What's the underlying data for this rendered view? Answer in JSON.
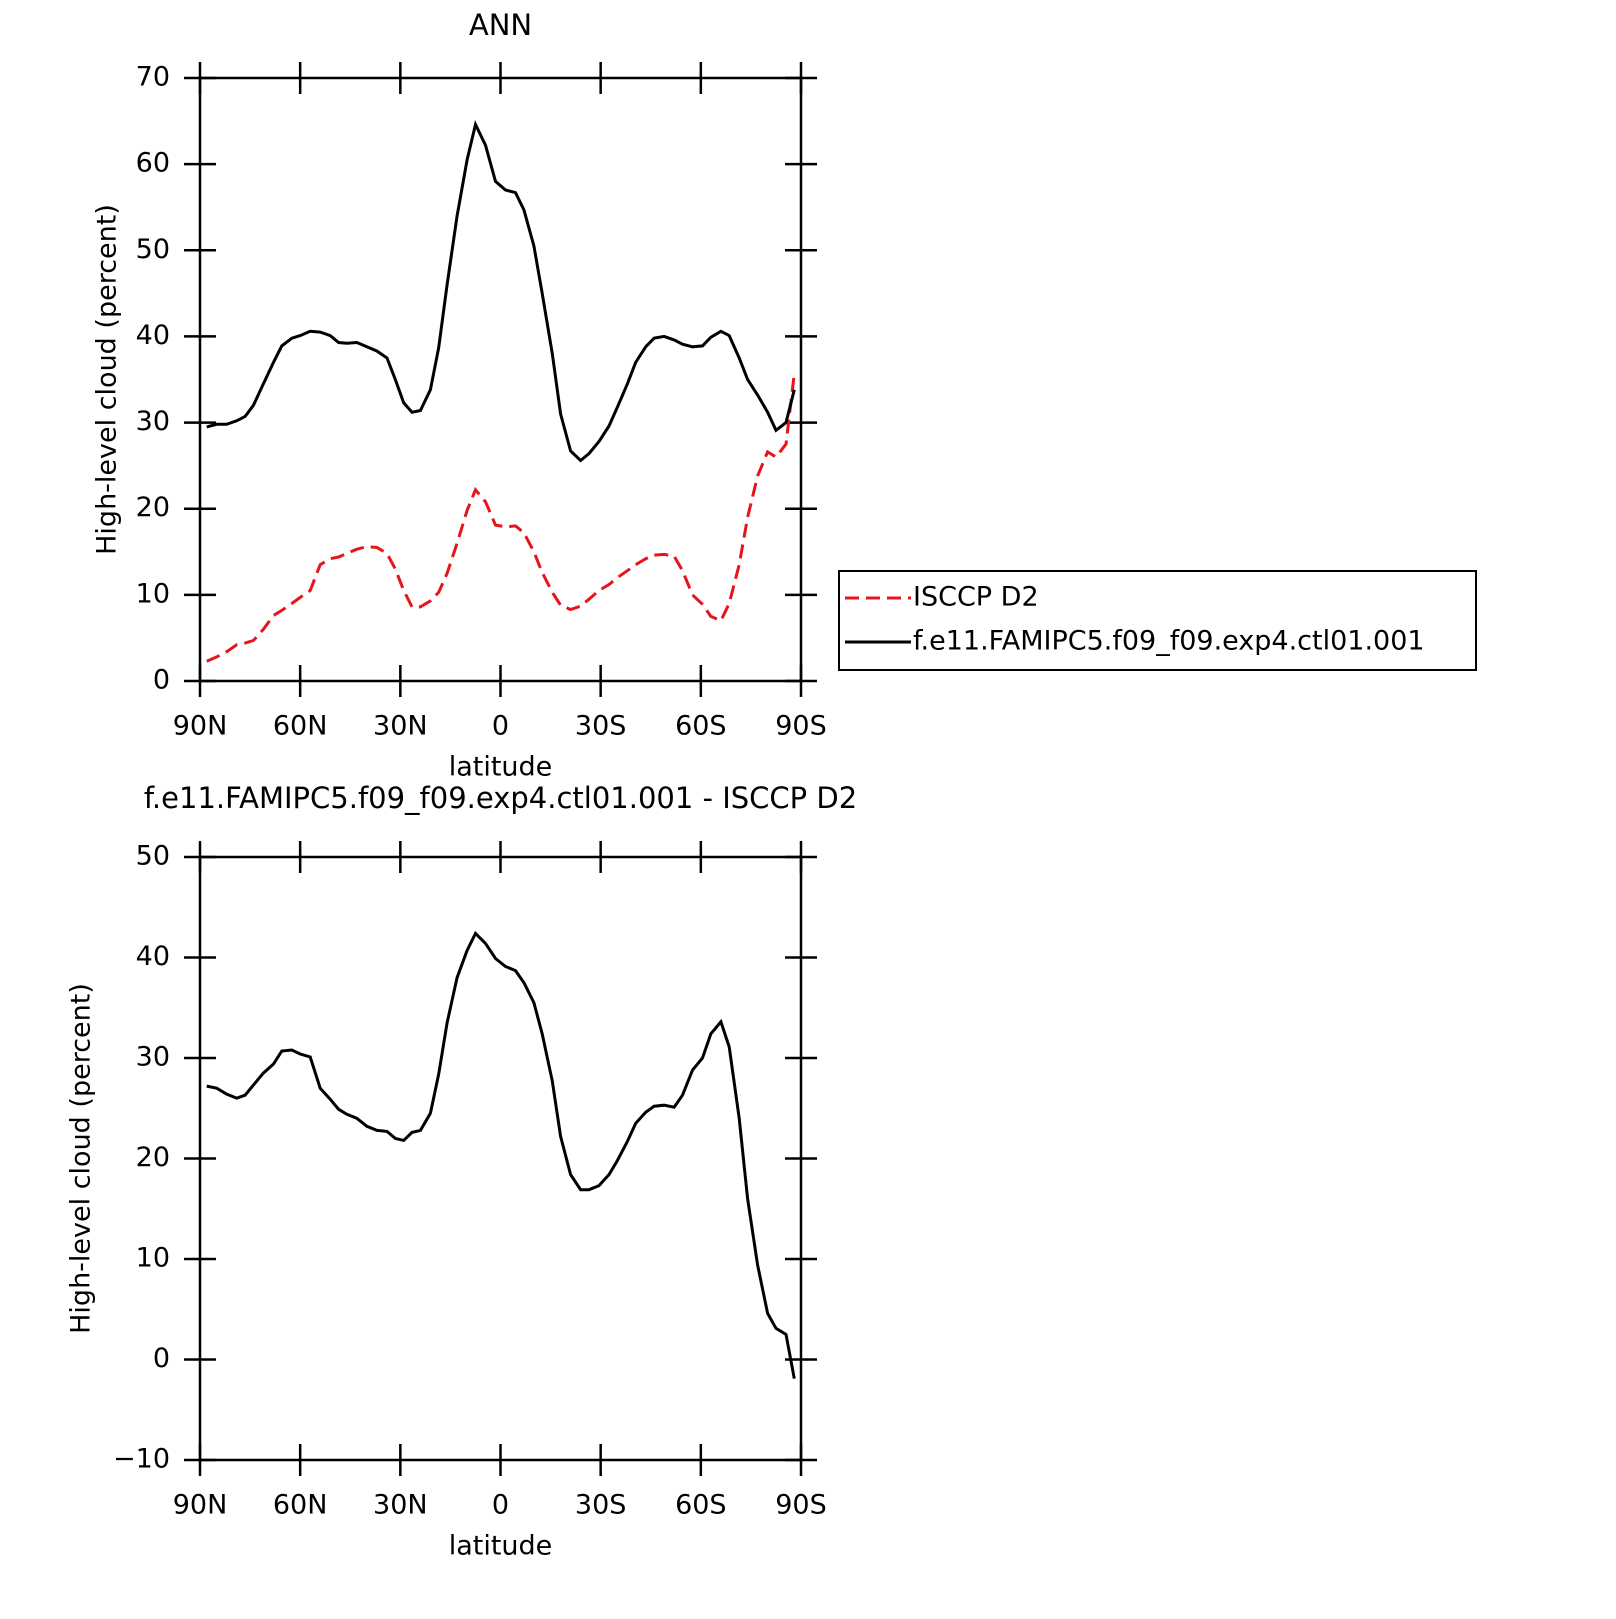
{
  "chart_data": [
    {
      "type": "line",
      "title": "ANN",
      "xlabel": "latitude",
      "ylabel": "High-level cloud (percent)",
      "x": [
        88,
        85,
        82,
        79,
        76.5,
        74,
        71,
        68,
        65.5,
        62.5,
        60,
        57,
        54,
        51,
        48.5,
        46,
        43,
        40,
        37,
        34,
        31.5,
        29,
        26.5,
        24,
        21,
        18.5,
        16,
        13,
        10,
        7.5,
        4.5,
        1.5,
        -1.5,
        -4.5,
        -7,
        -10,
        -12.5,
        -15.5,
        -18,
        -21,
        -24,
        -26.5,
        -29.5,
        -32.5,
        -35,
        -38,
        -40.5,
        -43.5,
        -46,
        -49,
        -52,
        -54.5,
        -57.5,
        -60.5,
        -63,
        -66,
        -68.5,
        -71.5,
        -74,
        -77,
        -80,
        -82.5,
        -85.5,
        -88
      ],
      "xlim": [
        90,
        -90
      ],
      "xticks": [
        {
          "value": 90,
          "label": "90N"
        },
        {
          "value": 60,
          "label": "60N"
        },
        {
          "value": 30,
          "label": "30N"
        },
        0,
        {
          "value": -30,
          "label": "30S"
        },
        {
          "value": -60,
          "label": "60S"
        },
        {
          "value": -90,
          "label": "90S"
        }
      ],
      "ylim": [
        0,
        70
      ],
      "yticks": [
        0,
        10,
        20,
        30,
        40,
        50,
        60,
        70
      ],
      "legend": "right",
      "series": [
        {
          "name": "ISCCP D2",
          "color": "#e8141c",
          "dashed": true,
          "values": [
            2.3,
            2.8,
            3.4,
            4.2,
            4.4,
            4.7,
            6,
            7.6,
            8.2,
            9,
            9.7,
            10.5,
            13.5,
            14.2,
            14.4,
            14.8,
            15.3,
            15.6,
            15.5,
            14.8,
            13,
            10.5,
            8.6,
            8.6,
            9.3,
            10.3,
            12.5,
            16,
            19.8,
            22.2,
            20.8,
            18.1,
            17.9,
            18,
            17.2,
            15,
            12.6,
            10.3,
            8.8,
            8.3,
            8.7,
            9.5,
            10.5,
            11.2,
            12,
            12.8,
            13.5,
            14.2,
            14.6,
            14.7,
            14.5,
            12.8,
            10,
            8.9,
            7.5,
            7,
            9,
            13.5,
            19,
            23.8,
            26.6,
            26,
            27.5,
            35.7
          ]
        },
        {
          "name": "f.e11.FAMIPC5.f09_f09.exp4.ctl01.001",
          "color": "#000000",
          "dashed": false,
          "values": [
            29.5,
            29.8,
            29.8,
            30.2,
            30.7,
            32,
            34.5,
            37,
            38.9,
            39.8,
            40.1,
            40.6,
            40.5,
            40.1,
            39.3,
            39.2,
            39.3,
            38.8,
            38.3,
            37.5,
            35,
            32.3,
            31.2,
            31.4,
            33.8,
            38.7,
            46,
            54,
            60.5,
            64.6,
            62.2,
            58,
            57,
            56.7,
            54.7,
            50.5,
            45,
            38,
            31,
            26.7,
            25.6,
            26.4,
            27.8,
            29.6,
            31.8,
            34.5,
            37,
            38.8,
            39.8,
            40,
            39.6,
            39.1,
            38.8,
            38.9,
            39.9,
            40.6,
            40.1,
            37.5,
            35,
            33.2,
            31.2,
            29.1,
            30,
            33.8
          ]
        }
      ]
    },
    {
      "type": "line",
      "title": "f.e11.FAMIPC5.f09_f09.exp4.ctl01.001 - ISCCP D2",
      "xlabel": "latitude",
      "ylabel": "High-level cloud (percent)",
      "x": [
        88,
        85,
        82,
        79,
        76.5,
        74,
        71,
        68,
        65.5,
        62.5,
        60,
        57,
        54,
        51,
        48.5,
        46,
        43,
        40,
        37,
        34,
        31.5,
        29,
        26.5,
        24,
        21,
        18.5,
        16,
        13,
        10,
        7.5,
        4.5,
        1.5,
        -1.5,
        -4.5,
        -7,
        -10,
        -12.5,
        -15.5,
        -18,
        -21,
        -24,
        -26.5,
        -29.5,
        -32.5,
        -35,
        -38,
        -40.5,
        -43.5,
        -46,
        -49,
        -52,
        -54.5,
        -57.5,
        -60.5,
        -63,
        -66,
        -68.5,
        -71.5,
        -74,
        -77,
        -80,
        -82.5,
        -85.5,
        -88
      ],
      "xlim": [
        90,
        -90
      ],
      "xticks": [
        {
          "value": 90,
          "label": "90N"
        },
        {
          "value": 60,
          "label": "60N"
        },
        {
          "value": 30,
          "label": "30N"
        },
        0,
        {
          "value": -30,
          "label": "30S"
        },
        {
          "value": -60,
          "label": "60S"
        },
        {
          "value": -90,
          "label": "90S"
        }
      ],
      "ylim": [
        -10,
        50
      ],
      "yticks": [
        {
          "value": -10,
          "label": "−10"
        },
        0,
        10,
        20,
        30,
        40,
        50
      ],
      "series": [
        {
          "color": "#000000",
          "dashed": false,
          "values": [
            27.2,
            27,
            26.4,
            26,
            26.3,
            27.3,
            28.5,
            29.4,
            30.7,
            30.8,
            30.4,
            30.1,
            27,
            25.9,
            24.9,
            24.4,
            24,
            23.2,
            22.8,
            22.7,
            22,
            21.8,
            22.6,
            22.8,
            24.5,
            28.4,
            33.5,
            38,
            40.7,
            42.4,
            41.4,
            39.9,
            39.1,
            38.7,
            37.5,
            35.5,
            32.4,
            27.7,
            22.2,
            18.4,
            16.9,
            16.9,
            17.3,
            18.4,
            19.8,
            21.7,
            23.5,
            24.6,
            25.2,
            25.3,
            25.1,
            26.3,
            28.8,
            30,
            32.4,
            33.6,
            31.1,
            24,
            16,
            9.4,
            4.6,
            3.1,
            2.5,
            -1.9
          ]
        }
      ]
    }
  ]
}
